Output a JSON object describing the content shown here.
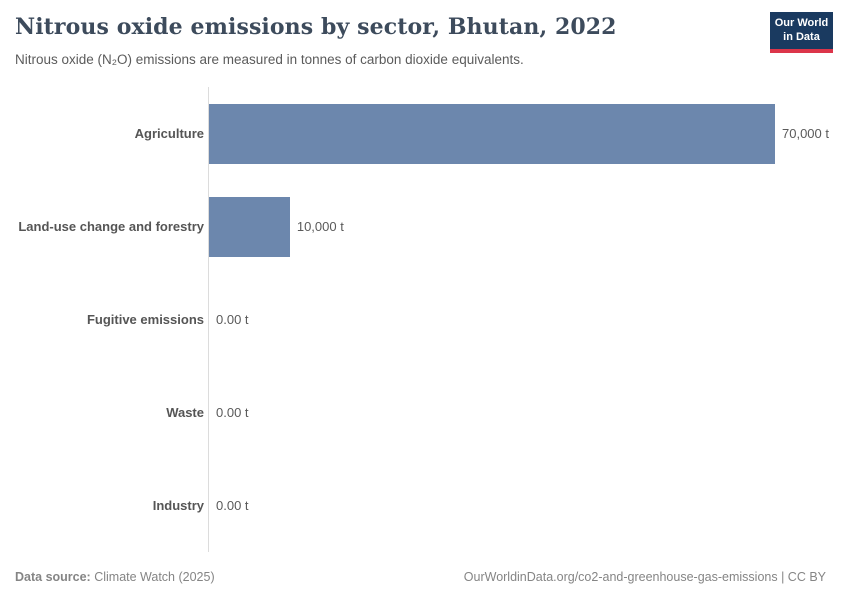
{
  "header": {
    "title": "Nitrous oxide emissions by sector, Bhutan, 2022",
    "subtitle": "Nitrous oxide (N₂O) emissions are measured in tonnes of carbon dioxide equivalents.",
    "logo": {
      "line1": "Our World",
      "line2": "in Data"
    }
  },
  "chart_data": {
    "type": "bar",
    "orientation": "horizontal",
    "title": "Nitrous oxide emissions by sector, Bhutan, 2022",
    "subtitle": "Nitrous oxide (N₂O) emissions are measured in tonnes of carbon dioxide equivalents.",
    "categories": [
      "Agriculture",
      "Land-use change and forestry",
      "Fugitive emissions",
      "Waste",
      "Industry"
    ],
    "values": [
      70000,
      10000,
      0,
      0,
      0
    ],
    "value_labels": [
      "70,000 t",
      "10,000 t",
      "0.00 t",
      "0.00 t",
      "0.00 t"
    ],
    "unit": "t",
    "xlim": [
      0,
      70000
    ],
    "grid": false,
    "legend": "none",
    "bar_color": "#6c87ad"
  },
  "footer": {
    "source_label": "Data source:",
    "source_value": " Climate Watch (2025)",
    "link": "OurWorldinData.org/co2-and-greenhouse-gas-emissions | CC BY"
  },
  "colors": {
    "bar": "#6c87ad",
    "title": "#3d4b5c",
    "axis_line": "#dcdcdc",
    "logo_navy": "#1a3a60",
    "logo_red": "#dc354a",
    "footer_text": "#858585"
  }
}
